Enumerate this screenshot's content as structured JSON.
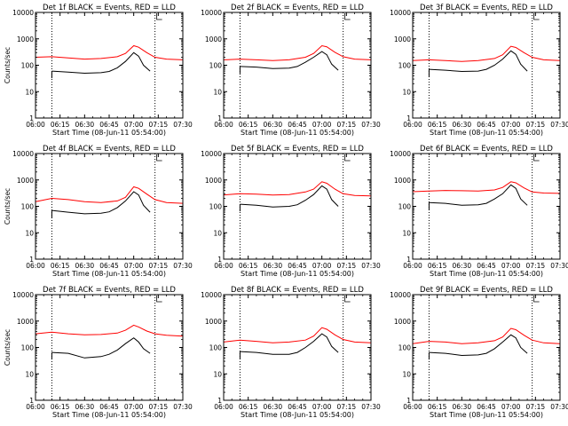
{
  "chart_data": [
    {
      "type": "line",
      "title": "Det 1f BLACK = Events, RED = LLD",
      "xlabel": "Start Time (08-Jun-11 05:54:00)",
      "ylabel": "Counts/sec",
      "yscale": "log",
      "ylim": [
        1,
        10000
      ],
      "xlim": [
        "06:00",
        "07:30"
      ],
      "x_ticks": [
        "06:00",
        "06:15",
        "06:30",
        "06:45",
        "07:00",
        "07:15",
        "07:30"
      ],
      "y_ticks": [
        "1",
        "10",
        "100",
        "1000",
        "10000"
      ],
      "markers": [
        "06:10",
        "07:13"
      ],
      "flag_label": "L",
      "series": [
        {
          "name": "Events",
          "color": "#000000",
          "x": [
            "06:10",
            "06:20",
            "06:30",
            "06:40",
            "06:45",
            "06:50",
            "06:55",
            "07:00",
            "07:03",
            "07:06",
            "07:10"
          ],
          "values": [
            60,
            55,
            50,
            52,
            58,
            80,
            140,
            300,
            220,
            100,
            60
          ]
        },
        {
          "name": "LLD",
          "color": "#ff0000",
          "x": [
            "06:00",
            "06:10",
            "06:20",
            "06:30",
            "06:40",
            "06:50",
            "06:55",
            "07:00",
            "07:03",
            "07:08",
            "07:13",
            "07:20",
            "07:30"
          ],
          "values": [
            200,
            210,
            190,
            170,
            180,
            210,
            280,
            550,
            480,
            300,
            200,
            170,
            160
          ]
        }
      ]
    },
    {
      "type": "line",
      "title": "Det 2f BLACK = Events, RED = LLD",
      "xlabel": "Start Time (08-Jun-11 05:54:00)",
      "ylabel": "",
      "yscale": "log",
      "ylim": [
        1,
        10000
      ],
      "xlim": [
        "06:00",
        "07:30"
      ],
      "x_ticks": [
        "06:00",
        "06:15",
        "06:30",
        "06:45",
        "07:00",
        "07:15",
        "07:30"
      ],
      "y_ticks": [
        "1",
        "10",
        "100",
        "1000",
        "10000"
      ],
      "markers": [
        "06:10",
        "07:13"
      ],
      "flag_label": "L",
      "series": [
        {
          "name": "Events",
          "color": "#000000",
          "x": [
            "06:10",
            "06:20",
            "06:30",
            "06:40",
            "06:45",
            "06:50",
            "06:55",
            "07:00",
            "07:03",
            "07:06",
            "07:10"
          ],
          "values": [
            90,
            85,
            75,
            78,
            90,
            130,
            200,
            330,
            250,
            110,
            65
          ]
        },
        {
          "name": "LLD",
          "color": "#ff0000",
          "x": [
            "06:00",
            "06:10",
            "06:20",
            "06:30",
            "06:40",
            "06:50",
            "06:55",
            "07:00",
            "07:03",
            "07:08",
            "07:13",
            "07:20",
            "07:30"
          ],
          "values": [
            160,
            170,
            160,
            150,
            160,
            200,
            280,
            550,
            500,
            310,
            210,
            170,
            160
          ]
        }
      ]
    },
    {
      "type": "line",
      "title": "Det 3f BLACK = Events, RED = LLD",
      "xlabel": "Start Time (08-Jun-11 05:54:00)",
      "ylabel": "",
      "yscale": "log",
      "ylim": [
        1,
        10000
      ],
      "xlim": [
        "06:00",
        "07:30"
      ],
      "x_ticks": [
        "06:00",
        "06:15",
        "06:30",
        "06:45",
        "07:00",
        "07:15",
        "07:30"
      ],
      "y_ticks": [
        "1",
        "10",
        "100",
        "1000",
        "10000"
      ],
      "markers": [
        "06:10",
        "07:13"
      ],
      "flag_label": "L",
      "series": [
        {
          "name": "Events",
          "color": "#000000",
          "x": [
            "06:10",
            "06:20",
            "06:30",
            "06:40",
            "06:45",
            "06:50",
            "06:55",
            "07:00",
            "07:03",
            "07:06",
            "07:10"
          ],
          "values": [
            70,
            65,
            58,
            60,
            70,
            100,
            170,
            350,
            260,
            110,
            60
          ]
        },
        {
          "name": "LLD",
          "color": "#ff0000",
          "x": [
            "06:00",
            "06:10",
            "06:20",
            "06:30",
            "06:40",
            "06:50",
            "06:55",
            "07:00",
            "07:03",
            "07:08",
            "07:13",
            "07:20",
            "07:30"
          ],
          "values": [
            150,
            160,
            150,
            140,
            150,
            180,
            250,
            520,
            470,
            300,
            200,
            160,
            150
          ]
        }
      ]
    },
    {
      "type": "line",
      "title": "Det 4f BLACK = Events, RED = LLD",
      "xlabel": "Start Time (08-Jun-11 05:54:00)",
      "ylabel": "Counts/sec",
      "yscale": "log",
      "ylim": [
        1,
        10000
      ],
      "xlim": [
        "06:00",
        "07:30"
      ],
      "x_ticks": [
        "06:00",
        "06:15",
        "06:30",
        "06:45",
        "07:00",
        "07:15",
        "07:30"
      ],
      "y_ticks": [
        "1",
        "10",
        "100",
        "1000",
        "10000"
      ],
      "markers": [
        "06:10",
        "07:13"
      ],
      "flag_label": "L",
      "series": [
        {
          "name": "Events",
          "color": "#000000",
          "x": [
            "06:10",
            "06:20",
            "06:30",
            "06:40",
            "06:45",
            "06:50",
            "06:55",
            "07:00",
            "07:03",
            "07:06",
            "07:10"
          ],
          "values": [
            70,
            60,
            52,
            55,
            62,
            90,
            160,
            360,
            270,
            110,
            60
          ]
        },
        {
          "name": "LLD",
          "color": "#ff0000",
          "x": [
            "06:00",
            "06:10",
            "06:20",
            "06:30",
            "06:40",
            "06:50",
            "06:55",
            "07:00",
            "07:03",
            "07:08",
            "07:13",
            "07:20",
            "07:30"
          ],
          "values": [
            150,
            200,
            180,
            150,
            140,
            160,
            220,
            550,
            480,
            290,
            180,
            140,
            130
          ]
        }
      ]
    },
    {
      "type": "line",
      "title": "Det 5f BLACK = Events, RED = LLD",
      "xlabel": "Start Time (08-Jun-11 05:54:00)",
      "ylabel": "",
      "yscale": "log",
      "ylim": [
        1,
        10000
      ],
      "xlim": [
        "06:00",
        "07:30"
      ],
      "x_ticks": [
        "06:00",
        "06:15",
        "06:30",
        "06:45",
        "07:00",
        "07:15",
        "07:30"
      ],
      "y_ticks": [
        "1",
        "10",
        "100",
        "1000",
        "10000"
      ],
      "markers": [
        "06:10",
        "07:13"
      ],
      "flag_label": "L",
      "series": [
        {
          "name": "Events",
          "color": "#000000",
          "x": [
            "06:10",
            "06:20",
            "06:30",
            "06:40",
            "06:45",
            "06:50",
            "06:55",
            "07:00",
            "07:03",
            "07:06",
            "07:10"
          ],
          "values": [
            120,
            110,
            95,
            100,
            115,
            170,
            280,
            600,
            450,
            180,
            100
          ]
        },
        {
          "name": "LLD",
          "color": "#ff0000",
          "x": [
            "06:00",
            "06:10",
            "06:20",
            "06:30",
            "06:40",
            "06:50",
            "06:55",
            "07:00",
            "07:03",
            "07:08",
            "07:13",
            "07:20",
            "07:30"
          ],
          "values": [
            270,
            300,
            290,
            270,
            280,
            350,
            450,
            850,
            750,
            450,
            300,
            260,
            250
          ]
        }
      ]
    },
    {
      "type": "line",
      "title": "Det 6f BLACK = Events, RED = LLD",
      "xlabel": "Start Time (08-Jun-11 05:54:00)",
      "ylabel": "",
      "yscale": "log",
      "ylim": [
        1,
        10000
      ],
      "xlim": [
        "06:00",
        "07:30"
      ],
      "x_ticks": [
        "06:00",
        "06:15",
        "06:30",
        "06:45",
        "07:00",
        "07:15",
        "07:30"
      ],
      "y_ticks": [
        "1",
        "10",
        "100",
        "1000",
        "10000"
      ],
      "markers": [
        "06:10",
        "07:13"
      ],
      "flag_label": "L",
      "series": [
        {
          "name": "Events",
          "color": "#000000",
          "x": [
            "06:10",
            "06:20",
            "06:30",
            "06:40",
            "06:45",
            "06:50",
            "06:55",
            "07:00",
            "07:03",
            "07:06",
            "07:10"
          ],
          "values": [
            140,
            130,
            110,
            115,
            130,
            190,
            300,
            650,
            480,
            190,
            110
          ]
        },
        {
          "name": "LLD",
          "color": "#ff0000",
          "x": [
            "06:00",
            "06:10",
            "06:20",
            "06:30",
            "06:40",
            "06:50",
            "06:55",
            "07:00",
            "07:03",
            "07:08",
            "07:13",
            "07:20",
            "07:30"
          ],
          "values": [
            360,
            380,
            400,
            390,
            380,
            420,
            520,
            850,
            780,
            500,
            350,
            320,
            310
          ]
        }
      ]
    },
    {
      "type": "line",
      "title": "Det 7f BLACK = Events, RED = LLD",
      "xlabel": "Start Time (08-Jun-11 05:54:00)",
      "ylabel": "Counts/sec",
      "yscale": "log",
      "ylim": [
        1,
        10000
      ],
      "xlim": [
        "06:00",
        "07:30"
      ],
      "x_ticks": [
        "06:00",
        "06:15",
        "06:30",
        "06:45",
        "07:00",
        "07:15",
        "07:30"
      ],
      "y_ticks": [
        "1",
        "10",
        "100",
        "1000",
        "10000"
      ],
      "markers": [
        "06:10",
        "07:13"
      ],
      "flag_label": "L",
      "series": [
        {
          "name": "Events",
          "color": "#000000",
          "x": [
            "06:10",
            "06:20",
            "06:30",
            "06:40",
            "06:45",
            "06:50",
            "06:55",
            "07:00",
            "07:03",
            "07:06",
            "07:10"
          ],
          "values": [
            65,
            60,
            40,
            45,
            55,
            80,
            140,
            230,
            160,
            90,
            60
          ]
        },
        {
          "name": "LLD",
          "color": "#ff0000",
          "x": [
            "06:00",
            "06:10",
            "06:20",
            "06:30",
            "06:40",
            "06:50",
            "06:55",
            "07:00",
            "07:03",
            "07:08",
            "07:13",
            "07:20",
            "07:30"
          ],
          "values": [
            330,
            380,
            330,
            300,
            310,
            350,
            450,
            700,
            600,
            420,
            330,
            290,
            270
          ]
        }
      ]
    },
    {
      "type": "line",
      "title": "Det 8f BLACK = Events, RED = LLD",
      "xlabel": "Start Time (08-Jun-11 05:54:00)",
      "ylabel": "",
      "yscale": "log",
      "ylim": [
        1,
        10000
      ],
      "xlim": [
        "06:00",
        "07:30"
      ],
      "x_ticks": [
        "06:00",
        "06:15",
        "06:30",
        "06:45",
        "07:00",
        "07:15",
        "07:30"
      ],
      "y_ticks": [
        "1",
        "10",
        "100",
        "1000",
        "10000"
      ],
      "markers": [
        "06:10",
        "07:13"
      ],
      "flag_label": "L",
      "series": [
        {
          "name": "Events",
          "color": "#000000",
          "x": [
            "06:10",
            "06:20",
            "06:30",
            "06:40",
            "06:45",
            "06:50",
            "06:55",
            "07:00",
            "07:03",
            "07:06",
            "07:10"
          ],
          "values": [
            70,
            65,
            55,
            55,
            65,
            100,
            170,
            330,
            250,
            110,
            65
          ]
        },
        {
          "name": "LLD",
          "color": "#ff0000",
          "x": [
            "06:00",
            "06:10",
            "06:20",
            "06:30",
            "06:40",
            "06:50",
            "06:55",
            "07:00",
            "07:03",
            "07:08",
            "07:13",
            "07:20",
            "07:30"
          ],
          "values": [
            160,
            190,
            170,
            150,
            160,
            190,
            270,
            560,
            490,
            300,
            200,
            160,
            150
          ]
        }
      ]
    },
    {
      "type": "line",
      "title": "Det 9f BLACK = Events, RED = LLD",
      "xlabel": "Start Time (08-Jun-11 05:54:00)",
      "ylabel": "",
      "yscale": "log",
      "ylim": [
        1,
        10000
      ],
      "xlim": [
        "06:00",
        "07:30"
      ],
      "x_ticks": [
        "06:00",
        "06:15",
        "06:30",
        "06:45",
        "07:00",
        "07:15",
        "07:30"
      ],
      "y_ticks": [
        "1",
        "10",
        "100",
        "1000",
        "10000"
      ],
      "markers": [
        "06:10",
        "07:13"
      ],
      "flag_label": "L",
      "series": [
        {
          "name": "Events",
          "color": "#000000",
          "x": [
            "06:10",
            "06:20",
            "06:30",
            "06:40",
            "06:45",
            "06:50",
            "06:55",
            "07:00",
            "07:03",
            "07:06",
            "07:10"
          ],
          "values": [
            65,
            60,
            50,
            52,
            60,
            90,
            160,
            300,
            230,
            100,
            60
          ]
        },
        {
          "name": "LLD",
          "color": "#ff0000",
          "x": [
            "06:00",
            "06:10",
            "06:20",
            "06:30",
            "06:40",
            "06:50",
            "06:55",
            "07:00",
            "07:03",
            "07:08",
            "07:13",
            "07:20",
            "07:30"
          ],
          "values": [
            140,
            170,
            160,
            140,
            150,
            180,
            250,
            530,
            470,
            290,
            190,
            150,
            140
          ]
        }
      ]
    }
  ]
}
